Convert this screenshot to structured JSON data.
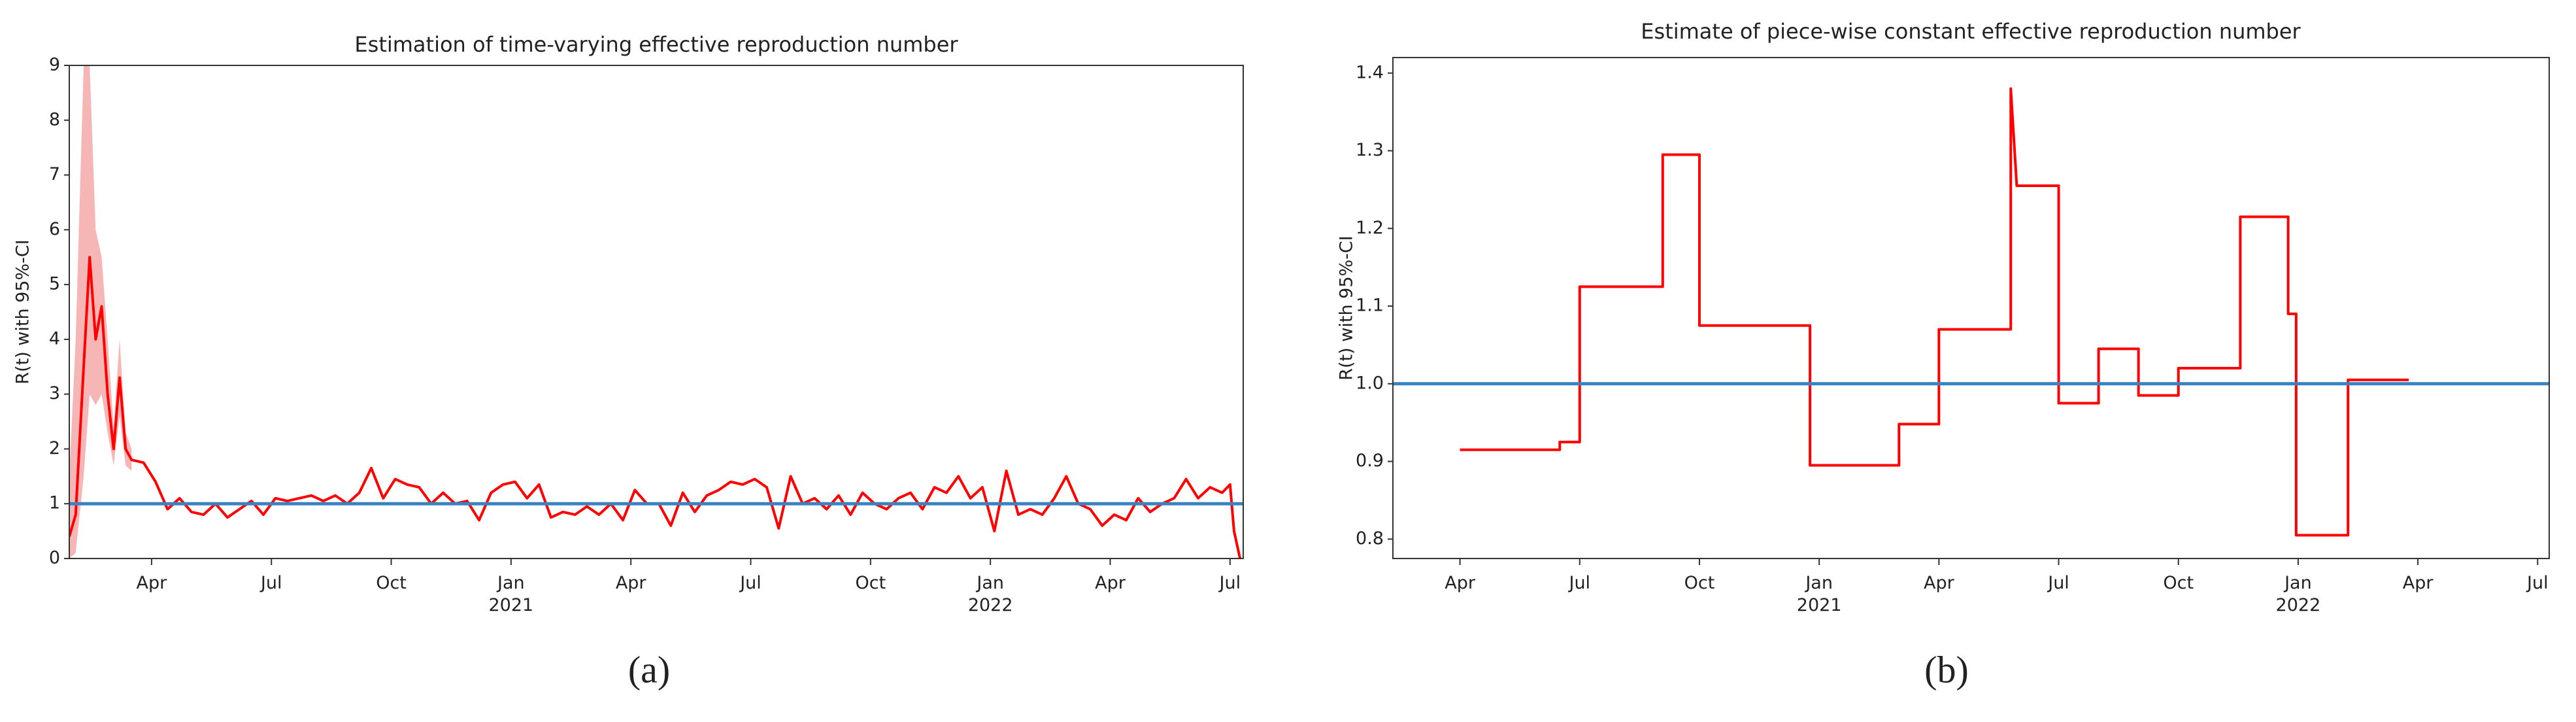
{
  "chart_data": [
    {
      "type": "line",
      "title": "Estimation of time-varying effective reproduction number",
      "ylabel": "R(t) with 95%-CI",
      "caption": "(a)",
      "xlim": [
        0.94,
        30.33
      ],
      "ylim": [
        0,
        9
      ],
      "xticks": [
        {
          "value": 3,
          "label": "Apr"
        },
        {
          "value": 6,
          "label": "Jul"
        },
        {
          "value": 9,
          "label": "Oct"
        },
        {
          "value": 12,
          "label": "Jan\n2021"
        },
        {
          "value": 15,
          "label": "Apr"
        },
        {
          "value": 18,
          "label": "Jul"
        },
        {
          "value": 21,
          "label": "Oct"
        },
        {
          "value": 24,
          "label": "Jan\n2022"
        },
        {
          "value": 27,
          "label": "Apr"
        },
        {
          "value": 30,
          "label": "Jul"
        }
      ],
      "yticks": [
        0,
        1,
        2,
        3,
        4,
        5,
        6,
        7,
        8,
        9
      ],
      "hline": 1,
      "hline_color": "#3a83c0",
      "band": {
        "color": "#f7b6b6",
        "x": [
          0.94,
          1.1,
          1.3,
          1.45,
          1.6,
          1.75,
          1.9,
          2.05,
          2.2,
          2.35,
          2.5
        ],
        "lower": [
          0,
          0.1,
          1.5,
          3.0,
          2.8,
          3.0,
          2.3,
          1.7,
          2.6,
          1.7,
          1.6
        ],
        "upper": [
          1.5,
          4.0,
          9,
          9,
          6.0,
          5.5,
          4.0,
          2.4,
          4.0,
          2.3,
          2.0
        ]
      },
      "series": [
        {
          "color": "#ff0000",
          "x": [
            0.94,
            1.1,
            1.3,
            1.45,
            1.6,
            1.75,
            1.9,
            2.05,
            2.2,
            2.35,
            2.5,
            2.8,
            3.1,
            3.4,
            3.7,
            4.0,
            4.3,
            4.6,
            4.9,
            5.2,
            5.5,
            5.8,
            6.1,
            6.4,
            6.7,
            7.0,
            7.3,
            7.6,
            7.9,
            8.2,
            8.5,
            8.8,
            9.1,
            9.4,
            9.7,
            10.0,
            10.3,
            10.6,
            10.9,
            11.2,
            11.5,
            11.8,
            12.1,
            12.4,
            12.7,
            13.0,
            13.3,
            13.6,
            13.9,
            14.2,
            14.5,
            14.8,
            15.1,
            15.4,
            15.7,
            16.0,
            16.3,
            16.6,
            16.9,
            17.2,
            17.5,
            17.8,
            18.1,
            18.4,
            18.7,
            19.0,
            19.3,
            19.6,
            19.9,
            20.2,
            20.5,
            20.8,
            21.1,
            21.4,
            21.7,
            22.0,
            22.3,
            22.6,
            22.9,
            23.2,
            23.5,
            23.8,
            24.1,
            24.4,
            24.7,
            25.0,
            25.3,
            25.6,
            25.9,
            26.2,
            26.5,
            26.8,
            27.1,
            27.4,
            27.7,
            28.0,
            28.3,
            28.6,
            28.9,
            29.2,
            29.5,
            29.8,
            30.0,
            30.1,
            30.25
          ],
          "values": [
            0.4,
            0.8,
            3.5,
            5.5,
            4.0,
            4.6,
            3.0,
            2.0,
            3.3,
            2.0,
            1.8,
            1.75,
            1.4,
            0.9,
            1.1,
            0.85,
            0.8,
            1.0,
            0.75,
            0.9,
            1.05,
            0.8,
            1.1,
            1.05,
            1.1,
            1.15,
            1.05,
            1.15,
            1.0,
            1.2,
            1.65,
            1.1,
            1.45,
            1.35,
            1.3,
            1.0,
            1.2,
            1.0,
            1.05,
            0.7,
            1.2,
            1.35,
            1.4,
            1.1,
            1.35,
            0.75,
            0.85,
            0.8,
            0.95,
            0.8,
            1.0,
            0.7,
            1.25,
            1.0,
            1.0,
            0.6,
            1.2,
            0.85,
            1.15,
            1.25,
            1.4,
            1.35,
            1.45,
            1.3,
            0.55,
            1.5,
            1.0,
            1.1,
            0.9,
            1.15,
            0.8,
            1.2,
            1.0,
            0.9,
            1.1,
            1.2,
            0.9,
            1.3,
            1.2,
            1.5,
            1.1,
            1.3,
            0.5,
            1.6,
            0.8,
            0.9,
            0.8,
            1.1,
            1.5,
            1.0,
            0.9,
            0.6,
            0.8,
            0.7,
            1.1,
            0.85,
            1.0,
            1.1,
            1.45,
            1.1,
            1.3,
            1.2,
            1.35,
            0.5,
            0.0
          ]
        }
      ]
    },
    {
      "type": "line",
      "title": "Estimate of piece-wise constant effective reproduction number",
      "ylabel": "R(t) with 95%-CI",
      "caption": "(b)",
      "xlim": [
        1.32,
        30.29
      ],
      "ylim": [
        0.775,
        1.42
      ],
      "xticks": [
        {
          "value": 3,
          "label": "Apr"
        },
        {
          "value": 6,
          "label": "Jul"
        },
        {
          "value": 9,
          "label": "Oct"
        },
        {
          "value": 12,
          "label": "Jan\n2021"
        },
        {
          "value": 15,
          "label": "Apr"
        },
        {
          "value": 18,
          "label": "Jul"
        },
        {
          "value": 21,
          "label": "Oct"
        },
        {
          "value": 24,
          "label": "Jan\n2022"
        },
        {
          "value": 27,
          "label": "Apr"
        },
        {
          "value": 30,
          "label": "Jul"
        }
      ],
      "yticks": [
        0.8,
        0.9,
        {
          "value": 1,
          "label": "1.0"
        },
        1.1,
        1.2,
        1.3,
        1.4
      ],
      "hline": 1,
      "hline_color": "#3a83c0",
      "series": [
        {
          "color": "#ff0000",
          "x": [
            3.0,
            5.5,
            5.5,
            6.0,
            6.0,
            8.08,
            8.08,
            9.0,
            9.0,
            11.77,
            11.77,
            14.0,
            14.0,
            15.0,
            15.0,
            16.8,
            16.8,
            16.95,
            16.95,
            18.0,
            18.0,
            19.0,
            19.0,
            20.0,
            20.0,
            21.0,
            21.0,
            22.55,
            22.55,
            23.75,
            23.75,
            23.95,
            23.95,
            25.25,
            25.25,
            26.77
          ],
          "values": [
            0.915,
            0.915,
            0.925,
            0.925,
            1.125,
            1.125,
            1.295,
            1.295,
            1.075,
            1.075,
            0.895,
            0.895,
            0.948,
            0.948,
            1.07,
            1.07,
            1.38,
            1.255,
            1.255,
            1.255,
            0.975,
            0.975,
            1.045,
            1.045,
            0.985,
            0.985,
            1.02,
            1.02,
            1.215,
            1.215,
            1.09,
            1.09,
            0.805,
            0.805,
            1.005,
            1.005
          ]
        }
      ]
    }
  ]
}
